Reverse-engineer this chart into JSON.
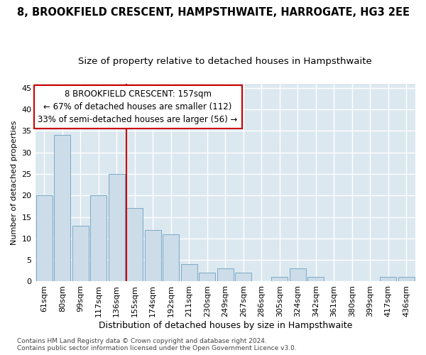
{
  "title1": "8, BROOKFIELD CRESCENT, HAMPSTHWAITE, HARROGATE, HG3 2EE",
  "title2": "Size of property relative to detached houses in Hampsthwaite",
  "xlabel": "Distribution of detached houses by size in Hampsthwaite",
  "ylabel": "Number of detached properties",
  "categories": [
    "61sqm",
    "80sqm",
    "99sqm",
    "117sqm",
    "136sqm",
    "155sqm",
    "174sqm",
    "192sqm",
    "211sqm",
    "230sqm",
    "249sqm",
    "267sqm",
    "286sqm",
    "305sqm",
    "324sqm",
    "342sqm",
    "361sqm",
    "380sqm",
    "399sqm",
    "417sqm",
    "436sqm"
  ],
  "values": [
    20,
    34,
    13,
    20,
    25,
    17,
    12,
    11,
    4,
    2,
    3,
    2,
    0,
    1,
    3,
    1,
    0,
    0,
    0,
    1,
    1
  ],
  "bar_color": "#ccdce8",
  "bar_edge_color": "#7aaac8",
  "highlight_index": 5,
  "vline_color": "#cc0000",
  "annotation_line1": "8 BROOKFIELD CRESCENT: 157sqm",
  "annotation_line2": "← 67% of detached houses are smaller (112)",
  "annotation_line3": "33% of semi-detached houses are larger (56) →",
  "annotation_box_color": "#cc0000",
  "ylim": [
    0,
    46
  ],
  "yticks": [
    0,
    5,
    10,
    15,
    20,
    25,
    30,
    35,
    40,
    45
  ],
  "bg_color": "#dce8f0",
  "grid_color": "#ffffff",
  "fig_bg": "#ffffff",
  "footer1": "Contains HM Land Registry data © Crown copyright and database right 2024.",
  "footer2": "Contains public sector information licensed under the Open Government Licence v3.0.",
  "title1_fontsize": 10.5,
  "title2_fontsize": 9.5,
  "xlabel_fontsize": 9,
  "ylabel_fontsize": 8,
  "tick_fontsize": 8,
  "annotation_fontsize": 8.5,
  "footer_fontsize": 6.5
}
